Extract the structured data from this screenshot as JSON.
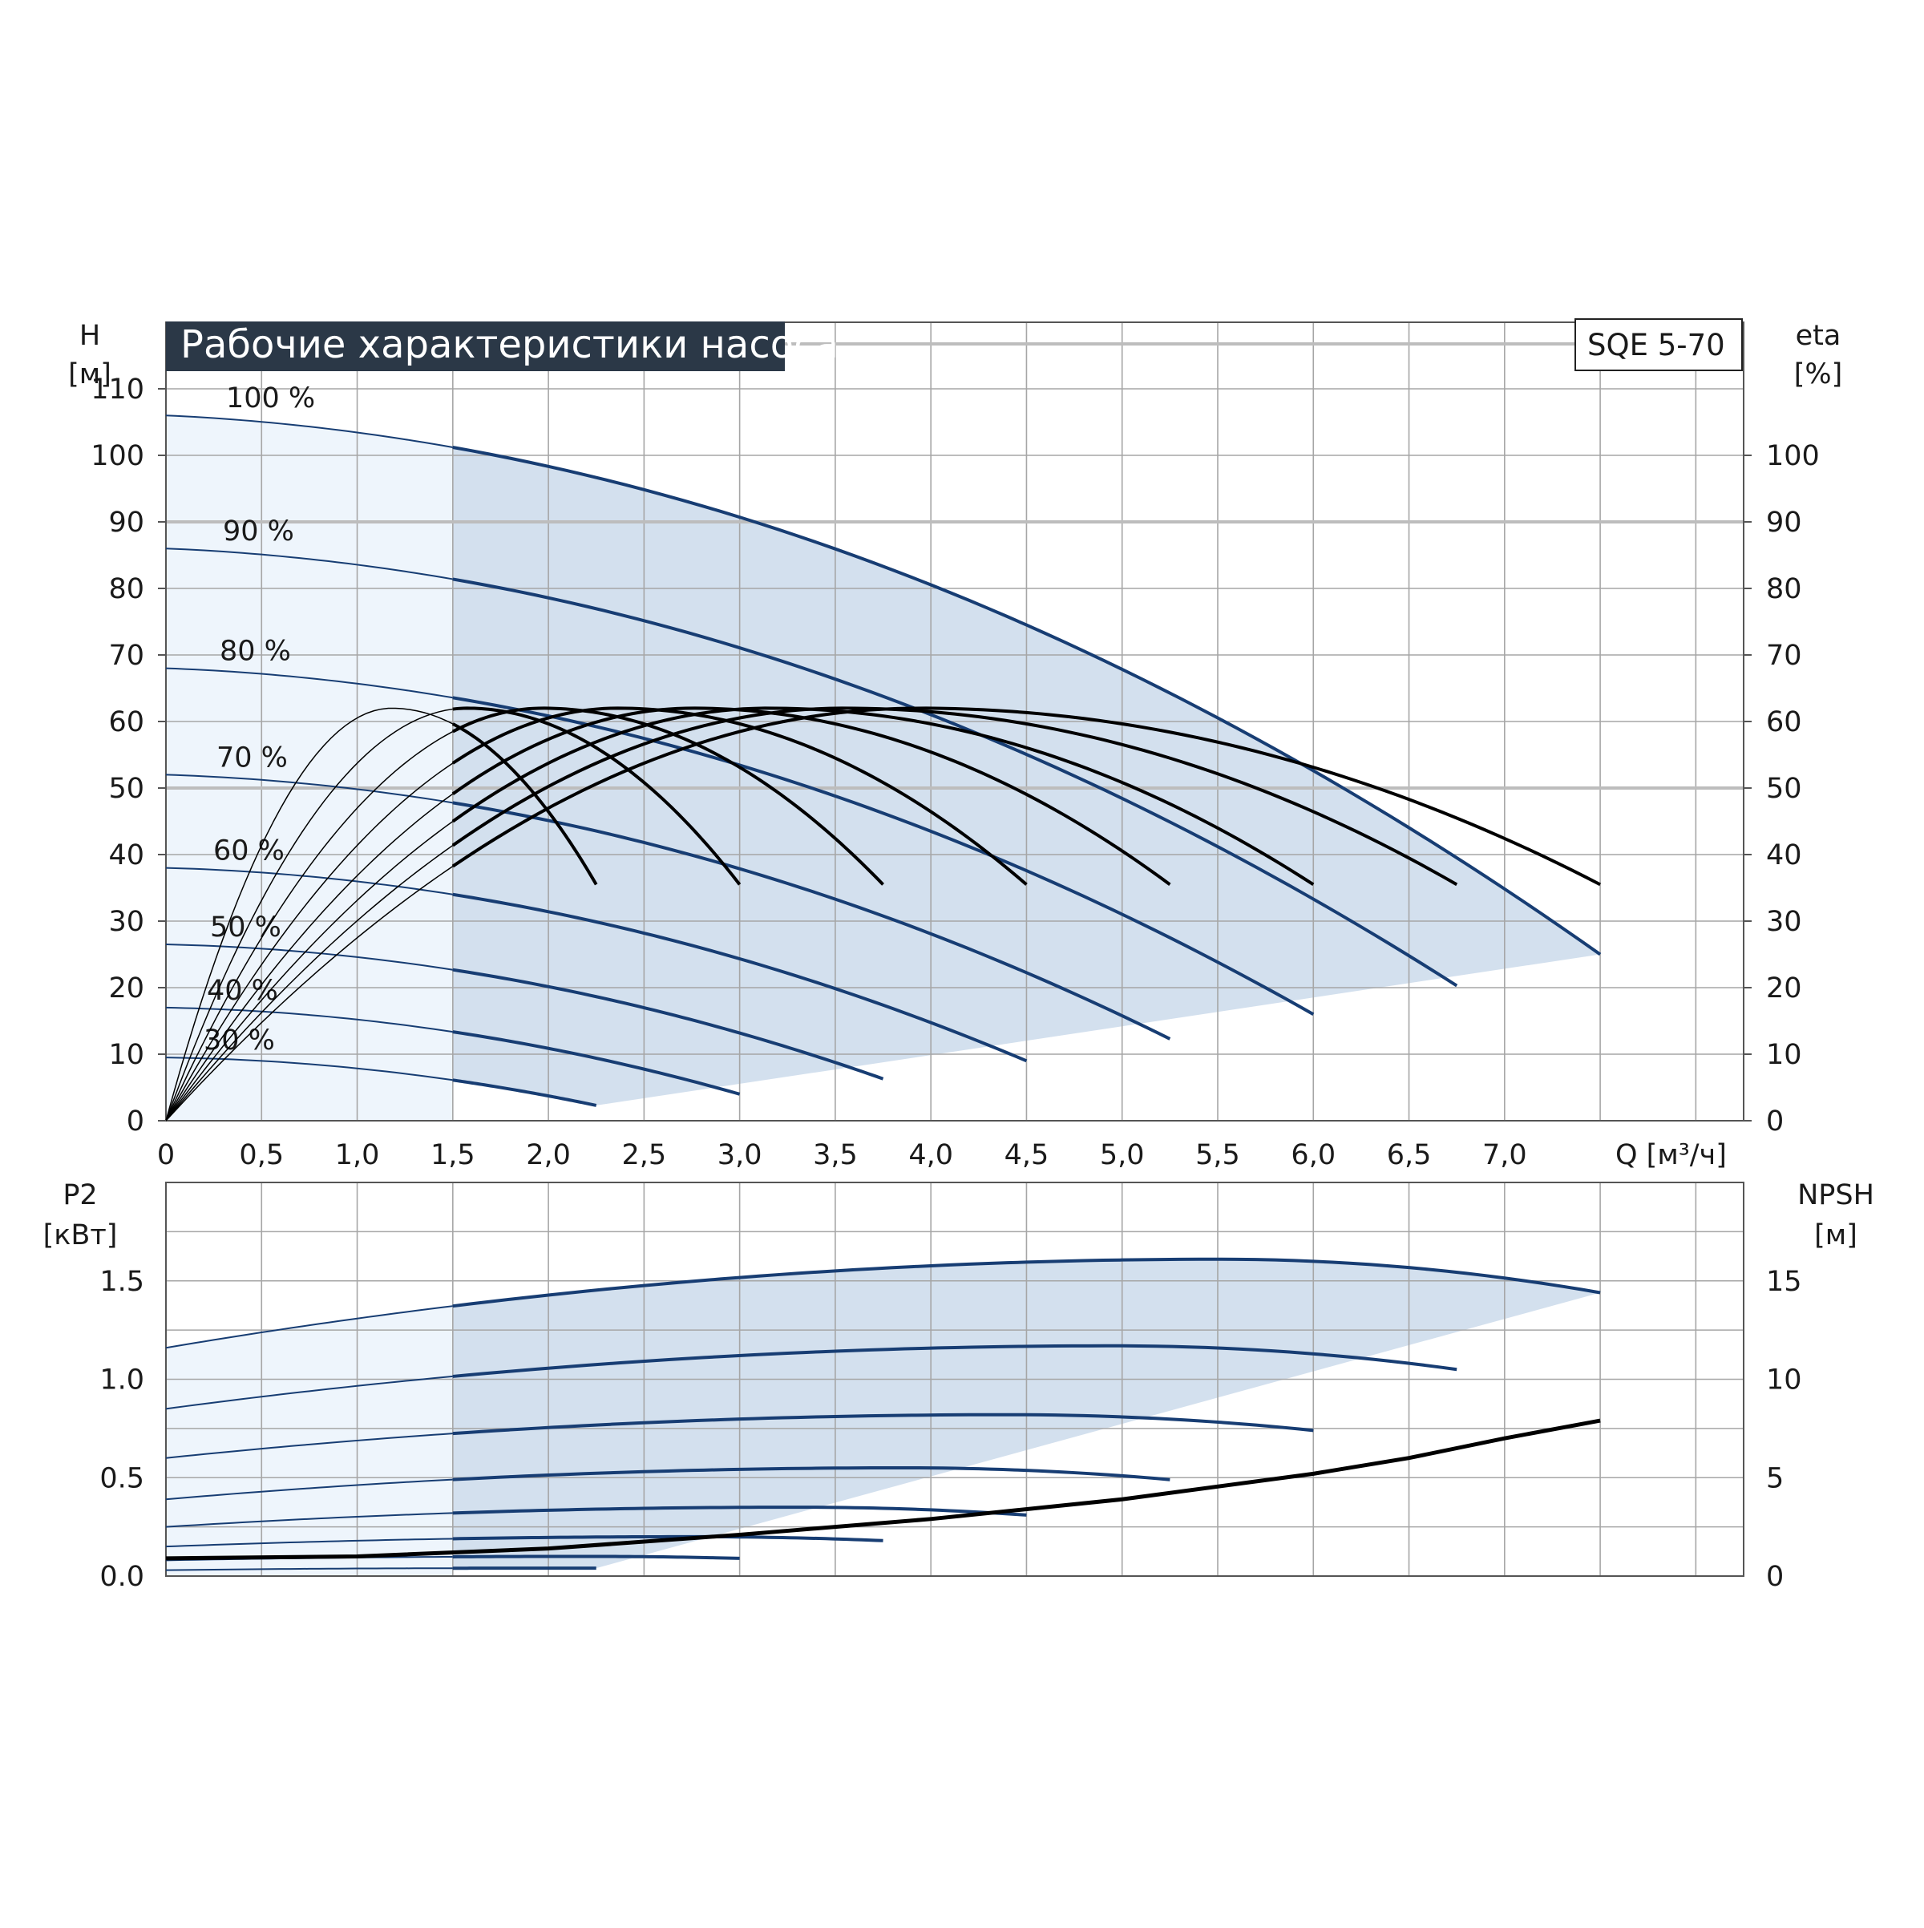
{
  "title": "Рабочие характеристики насоса",
  "model": "SQE 5-70",
  "colors": {
    "curve_blue": "#173d73",
    "curve_black": "#000000",
    "fill_dark": "#d3e0ee",
    "fill_light": "#eef5fc",
    "title_bg": "#2b3847",
    "grid": "#a6a6a6"
  },
  "chart_data": [
    {
      "type": "line",
      "name": "head",
      "left_axis_label": [
        "H",
        "[м]"
      ],
      "right_axis_label": [
        "eta",
        "[%]"
      ],
      "xlabel": "Q [м³/ч]",
      "xlim": [
        0,
        8.25
      ],
      "ylim": [
        0,
        120
      ],
      "x_ticks": [
        "0",
        "0,5",
        "1,0",
        "1,5",
        "2,0",
        "2,5",
        "3,0",
        "3,5",
        "4,0",
        "4,5",
        "5,0",
        "5,5",
        "6,0",
        "6,5",
        "7,0"
      ],
      "x_tick_values": [
        0,
        0.5,
        1.0,
        1.5,
        2.0,
        2.5,
        3.0,
        3.5,
        4.0,
        4.5,
        5.0,
        5.5,
        6.0,
        6.5,
        7.0
      ],
      "y_ticks_left": [
        0,
        10,
        20,
        30,
        40,
        50,
        60,
        70,
        80,
        90,
        100,
        110
      ],
      "y_ticks_right": [
        0,
        10,
        20,
        30,
        40,
        50,
        60,
        70,
        80,
        90,
        100
      ],
      "grid": true,
      "operating_area_start_q": 1.5,
      "speed_curves": [
        {
          "label": "100 %",
          "shutoff_head": 106,
          "q_max": 7.5,
          "head_at_q_max": 25
        },
        {
          "label": "90 %",
          "shutoff_head": 86,
          "q_max": 6.75,
          "head_at_q_max": 20.3
        },
        {
          "label": "80 %",
          "shutoff_head": 68,
          "q_max": 6.0,
          "head_at_q_max": 16.0
        },
        {
          "label": "70 %",
          "shutoff_head": 52,
          "q_max": 5.25,
          "head_at_q_max": 12.3
        },
        {
          "label": "60 %",
          "shutoff_head": 38,
          "q_max": 4.5,
          "head_at_q_max": 9.0
        },
        {
          "label": "50 %",
          "shutoff_head": 26.5,
          "q_max": 3.75,
          "head_at_q_max": 6.3
        },
        {
          "label": "40 %",
          "shutoff_head": 17,
          "q_max": 3.0,
          "head_at_q_max": 4.0
        },
        {
          "label": "30 %",
          "shutoff_head": 9.5,
          "q_max": 2.25,
          "head_at_q_max": 2.3
        }
      ],
      "efficiency_curves": [
        {
          "q_max": 2.25,
          "peak_eta": 62,
          "end_eta": 35.5
        },
        {
          "q_max": 3.0,
          "peak_eta": 62,
          "end_eta": 35.5
        },
        {
          "q_max": 3.75,
          "peak_eta": 62,
          "end_eta": 35.5
        },
        {
          "q_max": 4.5,
          "peak_eta": 62,
          "end_eta": 35.5
        },
        {
          "q_max": 5.25,
          "peak_eta": 62,
          "end_eta": 35.5
        },
        {
          "q_max": 6.0,
          "peak_eta": 62,
          "end_eta": 35.5
        },
        {
          "q_max": 6.75,
          "peak_eta": 62,
          "end_eta": 35.5
        },
        {
          "q_max": 7.5,
          "peak_eta": 62,
          "end_eta": 35.5
        }
      ]
    },
    {
      "type": "line",
      "name": "power",
      "left_axis_label": [
        "P2",
        "[кВт]"
      ],
      "right_axis_label": [
        "NPSH",
        "[м]"
      ],
      "xlim": [
        0,
        8.25
      ],
      "ylim": [
        0,
        2.0
      ],
      "y_ticks_left": [
        "0.0",
        "0.5",
        "1.0",
        "1.5"
      ],
      "y_tick_values_left": [
        0,
        0.5,
        1.0,
        1.5
      ],
      "y_ticks_right": [
        "0",
        "5",
        "10",
        "15"
      ],
      "grid": true,
      "power_curves": [
        {
          "q_max": 7.5,
          "p_start": 1.16,
          "p_peak": 1.61,
          "q_peak": 5.5,
          "p_end": 1.44
        },
        {
          "q_max": 6.75,
          "p_start": 0.85,
          "p_peak": 1.17,
          "q_peak": 4.95,
          "p_end": 1.05
        },
        {
          "q_max": 6.0,
          "p_start": 0.6,
          "p_peak": 0.82,
          "q_peak": 4.4,
          "p_end": 0.74
        },
        {
          "q_max": 5.25,
          "p_start": 0.39,
          "p_peak": 0.55,
          "q_peak": 3.85,
          "p_end": 0.49
        },
        {
          "q_max": 4.5,
          "p_start": 0.25,
          "p_peak": 0.35,
          "q_peak": 3.3,
          "p_end": 0.31
        },
        {
          "q_max": 3.75,
          "p_start": 0.15,
          "p_peak": 0.2,
          "q_peak": 2.75,
          "p_end": 0.18
        },
        {
          "q_max": 3.0,
          "p_start": 0.08,
          "p_peak": 0.1,
          "q_peak": 2.2,
          "p_end": 0.09
        },
        {
          "q_max": 2.25,
          "p_start": 0.03,
          "p_peak": 0.04,
          "q_peak": 1.65,
          "p_end": 0.04
        }
      ],
      "npsh_curve": {
        "q": [
          0,
          1.0,
          2.0,
          3.0,
          4.0,
          5.0,
          6.0,
          6.5,
          7.0,
          7.5
        ],
        "npsh": [
          0.9,
          1.0,
          1.4,
          2.1,
          2.9,
          3.9,
          5.2,
          6.0,
          7.0,
          7.9
        ]
      }
    }
  ]
}
